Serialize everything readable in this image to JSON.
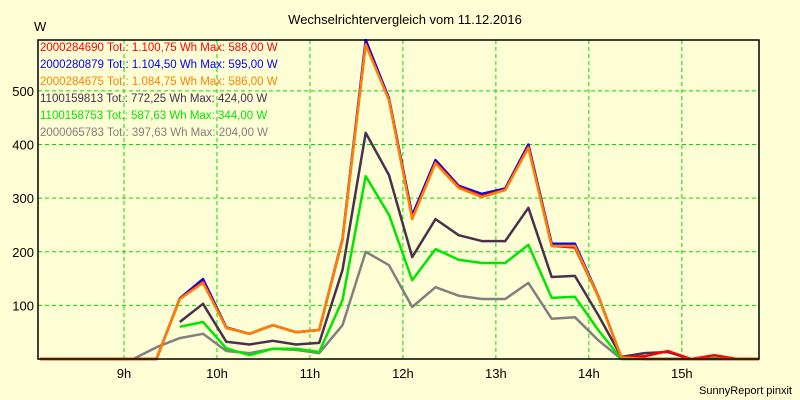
{
  "chart_data": {
    "type": "line",
    "title": "Wechselrichtervergleich vom 11.12.2016",
    "ylabel": "W",
    "xlabel": "",
    "footer": "SunnyReport pinxit",
    "xlim": [
      8.075,
      15.83
    ],
    "ylim": [
      0,
      595
    ],
    "grid": true,
    "legend_position": "top-left",
    "yticks": [
      100,
      200,
      300,
      400,
      500
    ],
    "xticks": [
      {
        "value": 9,
        "label": "9h"
      },
      {
        "value": 10,
        "label": "10h"
      },
      {
        "value": 11,
        "label": "11h"
      },
      {
        "value": 12,
        "label": "12h"
      },
      {
        "value": 13,
        "label": "13h"
      },
      {
        "value": 14,
        "label": "14h"
      },
      {
        "value": 15,
        "label": "15h"
      }
    ],
    "x": [
      8.1,
      9.1,
      9.35,
      9.6,
      9.85,
      10.1,
      10.35,
      10.6,
      10.85,
      11.1,
      11.35,
      11.6,
      11.85,
      12.1,
      12.35,
      12.6,
      12.85,
      13.1,
      13.35,
      13.6,
      13.85,
      14.1,
      14.35,
      14.6,
      14.85,
      15.1,
      15.35,
      15.6,
      15.83
    ],
    "series": [
      {
        "name": "2000065783",
        "legend": "2000065783 Tot.: 397,63 Wh Max: 204,00 W",
        "color": "#808080",
        "values": [
          0,
          0,
          22,
          39,
          47,
          15,
          11,
          19,
          17,
          11,
          63,
          200,
          175,
          97,
          134,
          118,
          112,
          112,
          142,
          75,
          78,
          35,
          0,
          0,
          0,
          0,
          0,
          0,
          0
        ]
      },
      {
        "name": "1100158753",
        "legend": "1100158753 Tot.: 587,63 Wh Max: 344,00 W",
        "color": "#00e600",
        "values": [
          null,
          null,
          null,
          60,
          69,
          20,
          7,
          19,
          19,
          13,
          110,
          341,
          269,
          147,
          205,
          185,
          179,
          179,
          213,
          114,
          116,
          54,
          0,
          0,
          0,
          0,
          2,
          0,
          0
        ]
      },
      {
        "name": "1100159813",
        "legend": "1100159813 Tot.: 772,25 Wh Max: 424,00 W",
        "color": "#4a3050",
        "values": [
          null,
          null,
          null,
          69,
          103,
          32,
          27,
          34,
          27,
          30,
          166,
          422,
          343,
          190,
          261,
          231,
          220,
          220,
          282,
          153,
          155,
          82,
          4,
          11,
          13,
          0,
          0,
          0,
          0
        ]
      },
      {
        "name": "2000280879",
        "legend": "2000280879 Tot.: 1.104,50 Wh Max: 595,00 W",
        "color": "#0000ff",
        "values": [
          0,
          0,
          0,
          113,
          149,
          59,
          47,
          63,
          50,
          54,
          224,
          595,
          486,
          268,
          371,
          323,
          308,
          318,
          400,
          215,
          215,
          118,
          3,
          0,
          0,
          0,
          0,
          0,
          0
        ]
      },
      {
        "name": "2000284690",
        "legend": "2000284690 Tot.: 1.100,75 Wh Max: 588,00 W",
        "color": "#ff0000",
        "values": [
          0,
          0,
          0,
          112,
          144,
          58,
          47,
          63,
          50,
          54,
          222,
          588,
          483,
          263,
          367,
          321,
          304,
          316,
          396,
          211,
          208,
          117,
          3,
          5,
          15,
          0,
          7,
          0,
          0
        ]
      },
      {
        "name": "2000284675",
        "legend": "2000284675 Tot.: 1.084,75 Wh Max: 586,00 W",
        "color": "#ff8000",
        "values": [
          0,
          0,
          0,
          112,
          142,
          58,
          47,
          63,
          50,
          54,
          222,
          586,
          483,
          261,
          365,
          319,
          302,
          315,
          394,
          211,
          211,
          117,
          3,
          0,
          0,
          0,
          0,
          0,
          0
        ]
      }
    ]
  }
}
